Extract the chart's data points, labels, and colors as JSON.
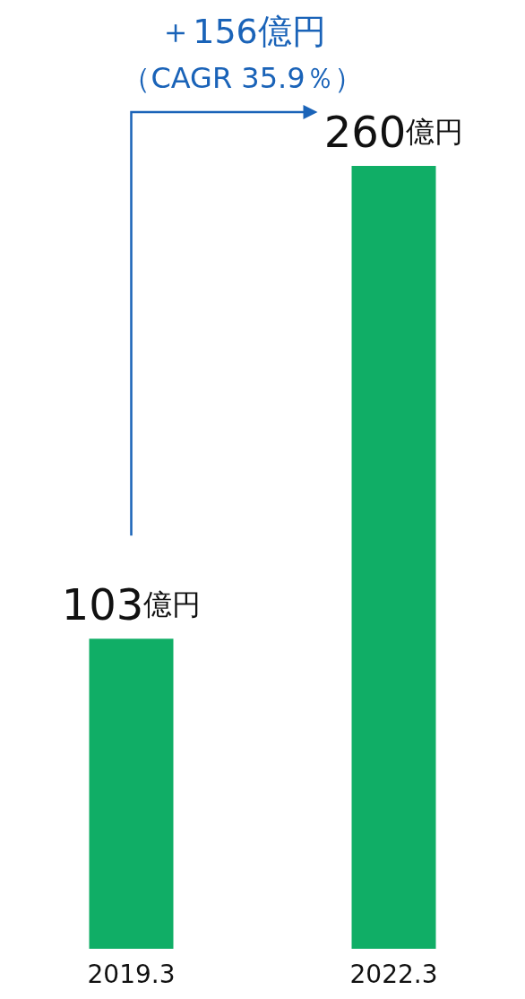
{
  "chart_data": {
    "type": "bar",
    "categories": [
      "2019.3",
      "2022.3"
    ],
    "values": [
      103,
      260
    ],
    "color": "#10ae66",
    "value_labels": [
      "103億円",
      "260億円"
    ],
    "annotations": [
      "＋156億円",
      "（CAGR 35.9％）"
    ],
    "grid": false
  }
}
